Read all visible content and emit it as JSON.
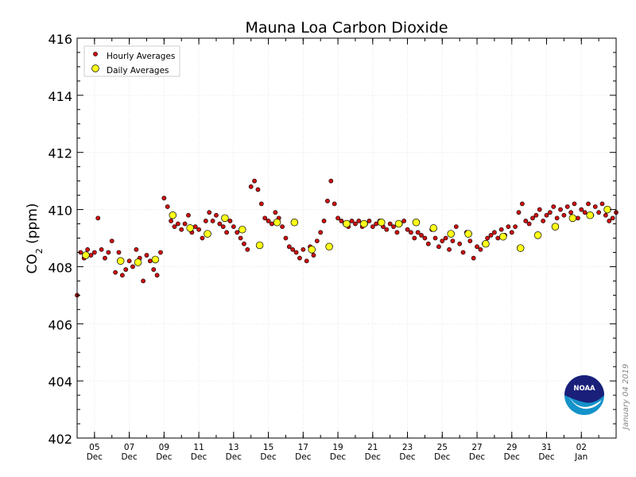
{
  "chart_data": {
    "type": "scatter",
    "title": "Mauna Loa Carbon Dioxide",
    "ylabel_main": "CO",
    "ylabel_sub": "2",
    "ylabel_unit": " (ppm)",
    "xlabel": "",
    "ylim": [
      402,
      416
    ],
    "xlim": [
      0,
      31
    ],
    "yticks": [
      402,
      404,
      406,
      408,
      410,
      412,
      414,
      416
    ],
    "xticks": [
      {
        "x": 1,
        "day": "05",
        "month": "Dec"
      },
      {
        "x": 3,
        "day": "07",
        "month": "Dec"
      },
      {
        "x": 5,
        "day": "09",
        "month": "Dec"
      },
      {
        "x": 7,
        "day": "11",
        "month": "Dec"
      },
      {
        "x": 9,
        "day": "13",
        "month": "Dec"
      },
      {
        "x": 11,
        "day": "15",
        "month": "Dec"
      },
      {
        "x": 13,
        "day": "17",
        "month": "Dec"
      },
      {
        "x": 15,
        "day": "19",
        "month": "Dec"
      },
      {
        "x": 17,
        "day": "21",
        "month": "Dec"
      },
      {
        "x": 19,
        "day": "23",
        "month": "Dec"
      },
      {
        "x": 21,
        "day": "25",
        "month": "Dec"
      },
      {
        "x": 23,
        "day": "27",
        "month": "Dec"
      },
      {
        "x": 25,
        "day": "29",
        "month": "Dec"
      },
      {
        "x": 27,
        "day": "31",
        "month": "Dec"
      },
      {
        "x": 29,
        "day": "02",
        "month": "Jan"
      }
    ],
    "legend": {
      "position": "top-left",
      "entries": [
        {
          "label": "Hourly Averages",
          "marker": "small-dot",
          "color": "#cc1111"
        },
        {
          "label": "Daily Averages",
          "marker": "large-dot",
          "color": "#ffff1a"
        }
      ]
    },
    "series": [
      {
        "name": "Daily Averages",
        "color": "#ffff1a",
        "x": [
          0.5,
          2.5,
          3.5,
          4.5,
          5.5,
          6.5,
          7.5,
          8.5,
          9.5,
          10.5,
          11.5,
          12.5,
          13.5,
          14.5,
          15.5,
          16.5,
          17.5,
          18.5,
          19.5,
          20.5,
          21.5,
          22.5,
          23.5,
          24.5,
          25.5,
          26.5,
          27.5,
          28.5,
          29.5,
          30.5
        ],
        "y": [
          408.4,
          408.2,
          408.15,
          408.25,
          409.8,
          409.35,
          409.15,
          409.7,
          409.3,
          408.75,
          409.55,
          409.55,
          408.6,
          408.7,
          409.5,
          409.5,
          409.55,
          409.5,
          409.55,
          409.35,
          409.15,
          409.15,
          408.8,
          409.05,
          408.65,
          409.1,
          409.4,
          409.7,
          409.8,
          410.0
        ]
      },
      {
        "name": "Hourly Averages",
        "color": "#cc1111",
        "x": [
          0.0,
          0.2,
          0.4,
          0.6,
          0.8,
          1.0,
          1.2,
          1.4,
          1.6,
          1.8,
          2.0,
          2.2,
          2.4,
          2.6,
          2.8,
          3.0,
          3.2,
          3.4,
          3.6,
          3.8,
          4.0,
          4.2,
          4.4,
          4.6,
          4.8,
          5.0,
          5.2,
          5.4,
          5.6,
          5.8,
          6.0,
          6.2,
          6.4,
          6.6,
          6.8,
          7.0,
          7.2,
          7.4,
          7.6,
          7.8,
          8.0,
          8.2,
          8.4,
          8.6,
          8.8,
          9.0,
          9.2,
          9.4,
          9.6,
          9.8,
          10.0,
          10.2,
          10.4,
          10.6,
          10.8,
          11.0,
          11.2,
          11.4,
          11.6,
          11.8,
          12.0,
          12.2,
          12.4,
          12.6,
          12.8,
          13.0,
          13.2,
          13.4,
          13.6,
          13.8,
          14.0,
          14.2,
          14.4,
          14.6,
          14.8,
          15.0,
          15.2,
          15.4,
          15.6,
          15.8,
          16.0,
          16.2,
          16.4,
          16.6,
          16.8,
          17.0,
          17.2,
          17.4,
          17.6,
          17.8,
          18.0,
          18.2,
          18.4,
          18.6,
          18.8,
          19.0,
          19.2,
          19.4,
          19.6,
          19.8,
          20.0,
          20.2,
          20.4,
          20.6,
          20.8,
          21.0,
          21.2,
          21.4,
          21.6,
          21.8,
          22.0,
          22.2,
          22.4,
          22.6,
          22.8,
          23.0,
          23.2,
          23.4,
          23.6,
          23.8,
          24.0,
          24.2,
          24.4,
          24.6,
          24.8,
          25.0,
          25.2,
          25.4,
          25.6,
          25.8,
          26.0,
          26.2,
          26.4,
          26.6,
          26.8,
          27.0,
          27.2,
          27.4,
          27.6,
          27.8,
          28.0,
          28.2,
          28.4,
          28.6,
          28.8,
          29.0,
          29.2,
          29.4,
          29.6,
          29.8,
          30.0,
          30.2,
          30.4,
          30.6,
          30.8,
          31.0
        ],
        "y": [
          407.0,
          408.5,
          408.3,
          408.6,
          408.4,
          408.5,
          409.7,
          408.6,
          408.3,
          408.5,
          408.9,
          407.8,
          408.5,
          407.7,
          407.9,
          408.2,
          408.0,
          408.6,
          408.3,
          407.5,
          408.4,
          408.2,
          407.9,
          407.7,
          408.5,
          410.4,
          410.1,
          409.6,
          409.4,
          409.5,
          409.3,
          409.5,
          409.8,
          409.2,
          409.4,
          409.3,
          409.0,
          409.6,
          409.9,
          409.6,
          409.8,
          409.5,
          409.4,
          409.2,
          409.6,
          409.4,
          409.2,
          409.0,
          408.8,
          408.6,
          410.8,
          411.0,
          410.7,
          410.2,
          409.7,
          409.6,
          409.5,
          409.9,
          409.7,
          409.4,
          409.0,
          408.7,
          408.6,
          408.5,
          408.3,
          408.6,
          408.2,
          408.7,
          408.4,
          408.9,
          409.2,
          409.6,
          410.3,
          411.0,
          410.2,
          409.7,
          409.6,
          409.5,
          409.4,
          409.6,
          409.5,
          409.6,
          409.4,
          409.5,
          409.6,
          409.4,
          409.5,
          409.6,
          409.4,
          409.3,
          409.5,
          409.4,
          409.2,
          409.5,
          409.6,
          409.3,
          409.2,
          409.0,
          409.2,
          409.1,
          409.0,
          408.8,
          409.3,
          409.0,
          408.7,
          408.9,
          409.0,
          408.6,
          408.9,
          409.4,
          408.8,
          408.5,
          409.2,
          408.9,
          408.3,
          408.7,
          408.6,
          408.8,
          409.0,
          409.1,
          409.2,
          409.0,
          409.3,
          409.1,
          409.4,
          409.2,
          409.4,
          409.9,
          410.2,
          409.6,
          409.5,
          409.7,
          409.8,
          410.0,
          409.6,
          409.8,
          409.9,
          410.1,
          409.7,
          410.0,
          409.8,
          410.1,
          409.9,
          410.2,
          409.7,
          410.0,
          409.9,
          410.2,
          409.8,
          410.1,
          409.9,
          410.2,
          409.8,
          409.6,
          409.7,
          409.9
        ]
      }
    ],
    "annotation": "January 04 2019",
    "logo_text": "NOAA"
  }
}
